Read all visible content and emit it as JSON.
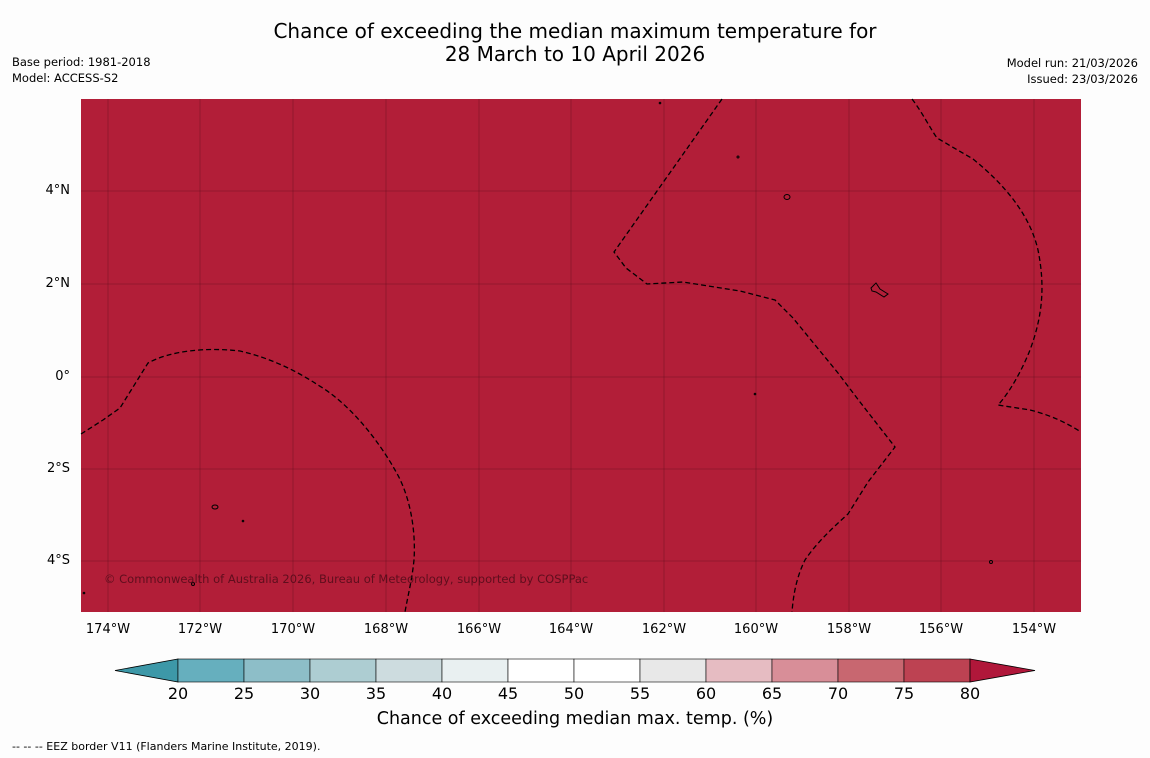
{
  "title": {
    "line1": "Chance of exceeding the median maximum temperature for",
    "line2": "28 March to 10 April 2026"
  },
  "meta_left": {
    "base_period": "Base period: 1981-2018",
    "model": "Model: ACCESS-S2"
  },
  "meta_right": {
    "model_run": "Model run: 21/03/2026",
    "issued": "Issued: 23/03/2026"
  },
  "map": {
    "fill_color": "#b21e38",
    "lat_labels": [
      "4°N",
      "2°N",
      "0°",
      "2°S",
      "4°S"
    ],
    "lon_labels": [
      "174°W",
      "172°W",
      "170°W",
      "168°W",
      "166°W",
      "164°W",
      "162°W",
      "160°W",
      "158°W",
      "156°W",
      "154°W"
    ],
    "copyright": "© Commonwealth of Australia 2026, Bureau of Meteorology, supported by COSPPac"
  },
  "colorbar": {
    "ticks": [
      "20",
      "25",
      "30",
      "35",
      "40",
      "45",
      "50",
      "55",
      "60",
      "65",
      "70",
      "75",
      "80"
    ],
    "colors": [
      "#3d98a8",
      "#66afbe",
      "#8dbec8",
      "#adcdd2",
      "#cddcdf",
      "#e9f0f1",
      "#ffffff",
      "#ffffff",
      "#e8e8e8",
      "#e6bcc2",
      "#d88e98",
      "#c86770",
      "#bd4252",
      "#b0173a"
    ],
    "label": "Chance of exceeding median max. temp. (%)"
  },
  "legend": "--  --  -- EEZ border V11 (Flanders Marine Institute, 2019)."
}
